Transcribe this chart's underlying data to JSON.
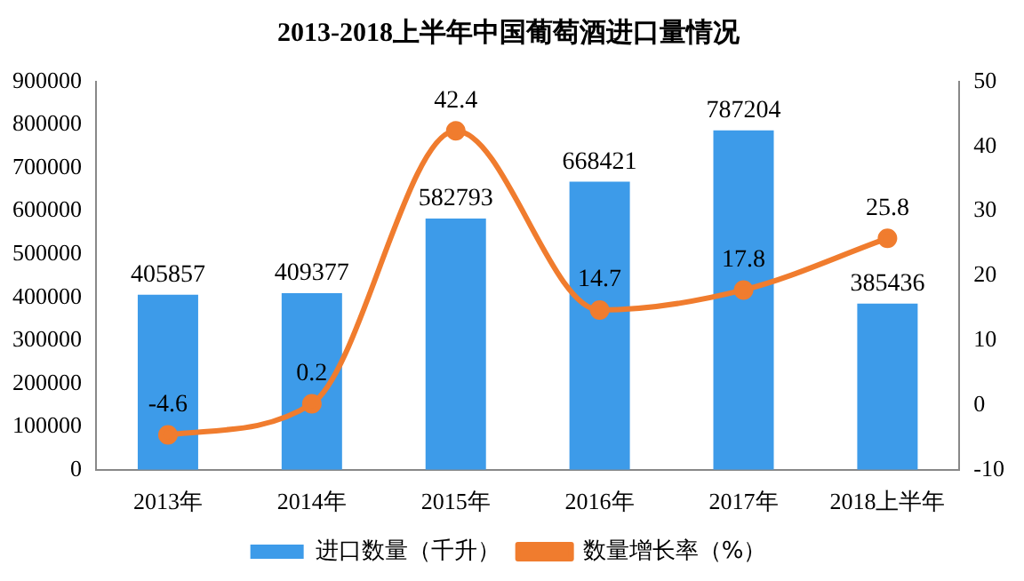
{
  "chart_data": {
    "type": "bar",
    "title": "2013-2018上半年中国葡萄酒进口量情况",
    "categories": [
      "2013年",
      "2014年",
      "2015年",
      "2016年",
      "2017年",
      "2018上半年"
    ],
    "series": [
      {
        "name": "进口数量（千升）",
        "color": "#3d9be9",
        "values": [
          405857,
          409377,
          582793,
          668421,
          787204,
          385436
        ]
      },
      {
        "name": "数量增长率（%）",
        "type": "line",
        "axis": "y2",
        "color": "#f07c2e",
        "values": [
          -4.6,
          0.2,
          42.4,
          14.7,
          17.8,
          25.8
        ]
      }
    ],
    "ylim": [
      0,
      900000
    ],
    "yticks": [
      0,
      100000,
      200000,
      300000,
      400000,
      500000,
      600000,
      700000,
      800000,
      900000
    ],
    "y2lim": [
      -10,
      50
    ],
    "y2ticks": [
      -10,
      0,
      10,
      20,
      30,
      40,
      50
    ],
    "data_labels": true,
    "grid": false,
    "legend": "bottom",
    "marker": "circle"
  }
}
